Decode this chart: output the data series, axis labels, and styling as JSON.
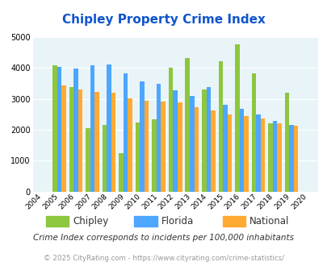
{
  "title": "Chipley Property Crime Index",
  "years": [
    2004,
    2005,
    2006,
    2007,
    2008,
    2009,
    2010,
    2011,
    2012,
    2013,
    2014,
    2015,
    2016,
    2017,
    2018,
    2019,
    2020
  ],
  "chipley": [
    null,
    4100,
    3380,
    2050,
    2150,
    1250,
    2230,
    2350,
    4020,
    4320,
    3300,
    4230,
    4780,
    3820,
    2210,
    3200,
    null
  ],
  "florida": [
    null,
    4030,
    3980,
    4080,
    4130,
    3840,
    3570,
    3500,
    3290,
    3110,
    3380,
    2820,
    2690,
    2510,
    2300,
    2150,
    null
  ],
  "national": [
    null,
    3440,
    3320,
    3240,
    3200,
    3030,
    2940,
    2920,
    2890,
    2730,
    2640,
    2490,
    2450,
    2370,
    2200,
    2140,
    null
  ],
  "chipley_color": "#8dc63f",
  "florida_color": "#4da6ff",
  "national_color": "#ffaa33",
  "bg_color": "#e8f4f8",
  "ylim": [
    0,
    5000
  ],
  "yticks": [
    0,
    1000,
    2000,
    3000,
    4000,
    5000
  ],
  "subtitle": "Crime Index corresponds to incidents per 100,000 inhabitants",
  "footer": "© 2025 CityRating.com - https://www.cityrating.com/crime-statistics/",
  "legend_labels": [
    "Chipley",
    "Florida",
    "National"
  ]
}
